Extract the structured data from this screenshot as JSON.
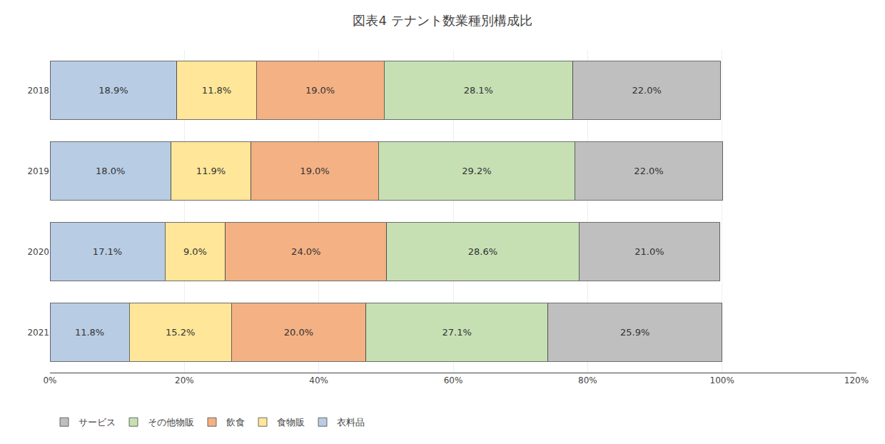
{
  "chart_data": {
    "type": "bar",
    "title": "図表4 テナント数業種別構成比",
    "orientation": "horizontal",
    "stacked": true,
    "data_labels": true,
    "grid": true,
    "legend": "bottom",
    "categories": [
      "2018",
      "2019",
      "2020",
      "2021"
    ],
    "series": [
      {
        "name": "衣料品",
        "color": "#b8cce4",
        "values": [
          18.9,
          18.0,
          17.1,
          11.8
        ],
        "value_labels": [
          "18.9%",
          "18.0%",
          "17.1%",
          "11.8%"
        ]
      },
      {
        "name": "食物販",
        "color": "#ffe699",
        "values": [
          11.8,
          11.9,
          9.0,
          15.2
        ],
        "value_labels": [
          "11.8%",
          "11.9%",
          "9.0%",
          "15.2%"
        ]
      },
      {
        "name": "飲食",
        "color": "#f4b183",
        "values": [
          19.0,
          19.0,
          24.0,
          20.0
        ],
        "value_labels": [
          "19.0%",
          "19.0%",
          "24.0%",
          "20.0%"
        ]
      },
      {
        "name": "その他物販",
        "color": "#c6e0b4",
        "values": [
          28.1,
          29.2,
          28.6,
          27.1
        ],
        "value_labels": [
          "28.1%",
          "29.2%",
          "28.6%",
          "27.1%"
        ]
      },
      {
        "name": "サービス",
        "color": "#bfbfbf",
        "values": [
          22.0,
          22.0,
          21.0,
          25.9
        ],
        "value_labels": [
          "22.0%",
          "22.0%",
          "21.0%",
          "25.9%"
        ]
      }
    ],
    "xlim": [
      0,
      120
    ],
    "xticks": [
      {
        "value": 0,
        "label": "0%"
      },
      {
        "value": 20,
        "label": "20%"
      },
      {
        "value": 40,
        "label": "40%"
      },
      {
        "value": 60,
        "label": "60%"
      },
      {
        "value": 80,
        "label": "80%"
      },
      {
        "value": 100,
        "label": "100%"
      },
      {
        "value": 120,
        "label": "120%"
      }
    ]
  }
}
